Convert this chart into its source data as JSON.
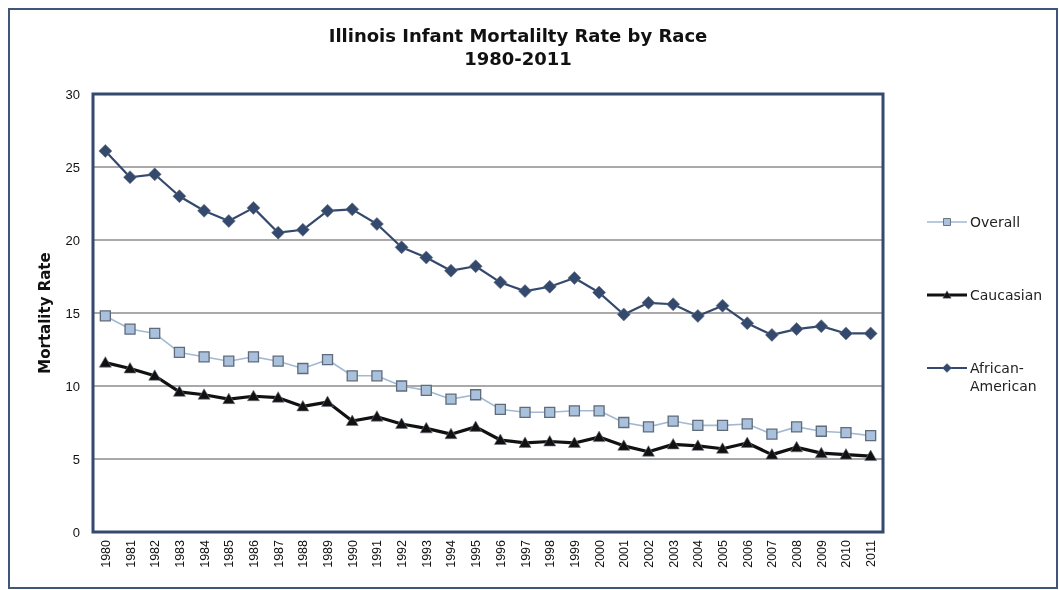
{
  "chart_data": {
    "type": "line",
    "title": "Illinois Infant Mortalilty Rate by Race",
    "subtitle": "1980-2011",
    "ylabel": "Mortality Rate",
    "categories": [
      "1980",
      "1981",
      "1982",
      "1983",
      "1984",
      "1985",
      "1986",
      "1987",
      "1988",
      "1989",
      "1990",
      "1991",
      "1992",
      "1993",
      "1994",
      "1995",
      "1996",
      "1997",
      "1998",
      "1999",
      "2000",
      "2001",
      "2002",
      "2003",
      "2004",
      "2005",
      "2006",
      "2007",
      "2008",
      "2009",
      "2010",
      "2011"
    ],
    "series": [
      {
        "name": "Overall",
        "color": "#a3b9d3",
        "marker": "square",
        "values": [
          14.8,
          13.9,
          13.6,
          12.3,
          12.0,
          11.7,
          12.0,
          11.7,
          11.2,
          11.8,
          10.7,
          10.7,
          10.0,
          9.7,
          9.1,
          9.4,
          8.4,
          8.2,
          8.2,
          8.3,
          8.3,
          7.5,
          7.2,
          7.6,
          7.3,
          7.3,
          7.4,
          6.7,
          7.2,
          6.9,
          6.8,
          6.6
        ]
      },
      {
        "name": "Caucasian",
        "color": "#111111",
        "marker": "triangle",
        "values": [
          11.6,
          11.2,
          10.7,
          9.6,
          9.4,
          9.1,
          9.3,
          9.2,
          8.6,
          8.9,
          7.6,
          7.9,
          7.4,
          7.1,
          6.7,
          7.2,
          6.3,
          6.1,
          6.2,
          6.1,
          6.5,
          5.9,
          5.5,
          6.0,
          5.9,
          5.7,
          6.1,
          5.3,
          5.8,
          5.4,
          5.3,
          5.2
        ]
      },
      {
        "name": "African-American",
        "color": "#34496e",
        "marker": "diamond",
        "values": [
          26.1,
          24.3,
          24.5,
          23.0,
          22.0,
          21.3,
          22.2,
          20.5,
          20.7,
          22.0,
          22.1,
          21.1,
          19.5,
          18.8,
          17.9,
          18.2,
          17.1,
          16.5,
          16.8,
          17.4,
          16.4,
          14.9,
          15.7,
          15.6,
          14.8,
          15.5,
          14.3,
          13.5,
          13.9,
          14.1,
          13.6,
          13.6
        ]
      }
    ],
    "ylim": [
      0,
      30
    ],
    "yticks": [
      0,
      5,
      10,
      15,
      20,
      25,
      30
    ],
    "grid": "y",
    "legend": "right"
  }
}
